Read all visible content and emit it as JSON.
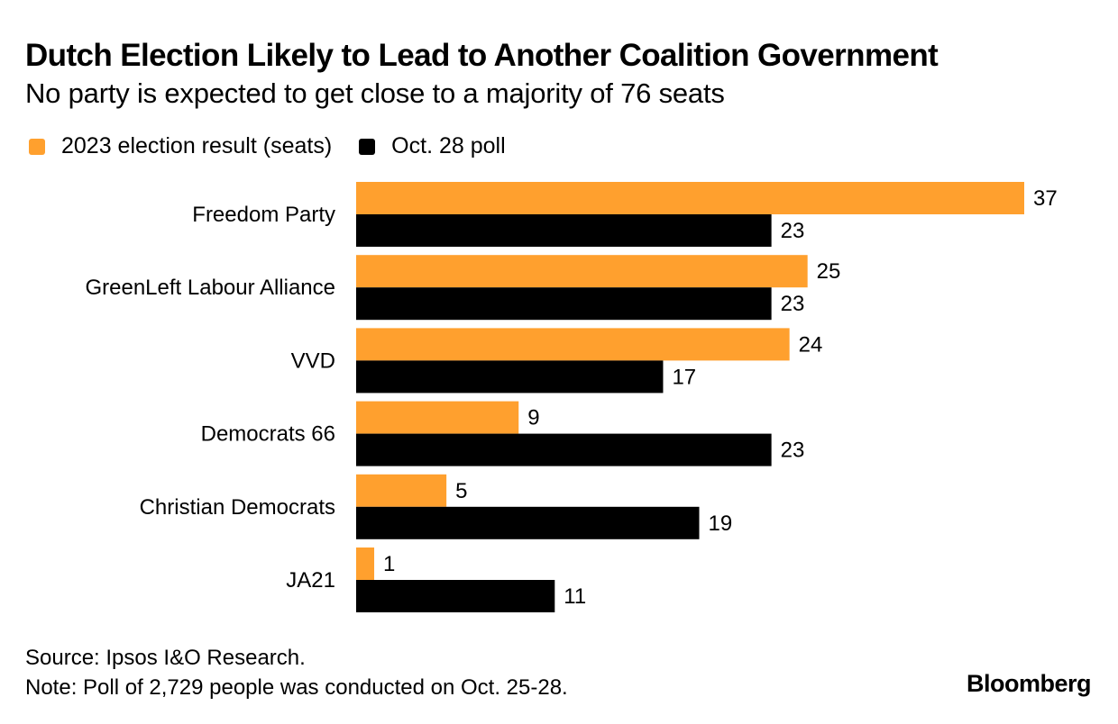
{
  "chart_data": {
    "type": "bar",
    "orientation": "horizontal",
    "title": "Dutch Election Likely to Lead to Another Coalition Government",
    "subtitle": "No party is expected to get close to a majority of 76 seats",
    "categories": [
      "Freedom Party",
      "GreenLeft Labour Alliance",
      "VVD",
      "Democrats 66",
      "Christian Democrats",
      "JA21"
    ],
    "series": [
      {
        "name": "2023 election result (seats)",
        "color": "#FFA02E",
        "values": [
          37,
          25,
          24,
          9,
          5,
          1
        ]
      },
      {
        "name": "Oct. 28 poll",
        "color": "#000000",
        "values": [
          23,
          23,
          17,
          23,
          19,
          11
        ]
      }
    ],
    "xlabel": "",
    "ylabel": "",
    "xlim": [
      0,
      37
    ],
    "grid": false,
    "legend_position": "top-left",
    "data_labels": true
  },
  "footer": {
    "source": "Source: Ipsos I&O Research.",
    "note": "Note: Poll of 2,729 people was conducted on Oct. 25-28."
  },
  "brand": "Bloomberg"
}
